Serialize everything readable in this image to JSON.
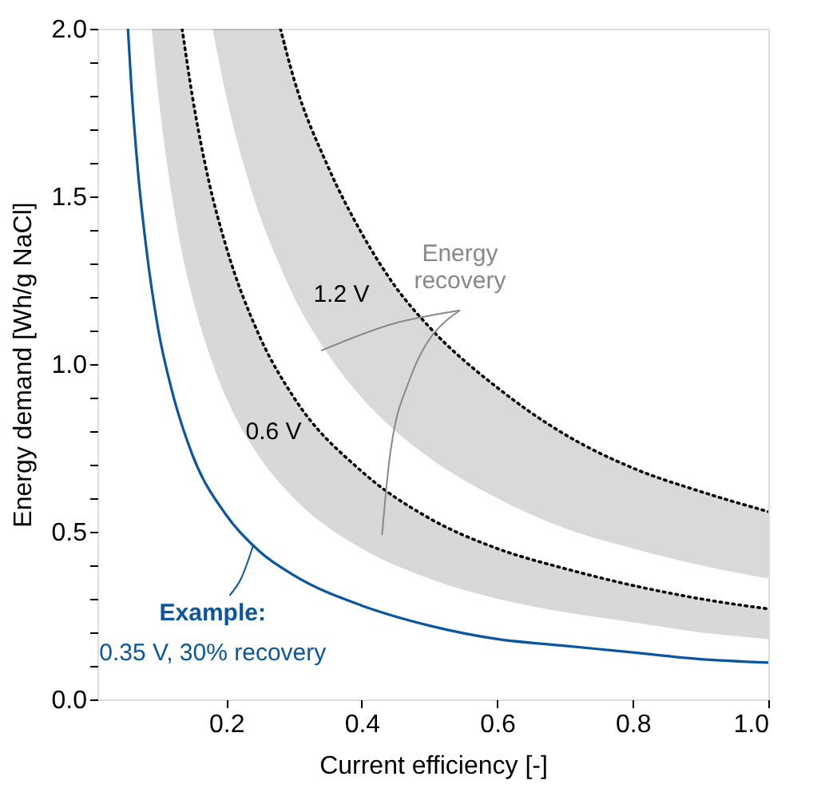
{
  "chart_data": {
    "type": "line",
    "xlabel": "Current efficiency [-]",
    "ylabel": "Energy demand [Wh/g NaCl]",
    "xlim": [
      0.01,
      1.0
    ],
    "ylim": [
      0.0,
      2.0
    ],
    "xticks": [
      0.2,
      0.4,
      0.6,
      0.8,
      {
        "value": 1.0,
        "label": "1.0"
      }
    ],
    "yticks": [
      {
        "value": 0.0,
        "label": "0.0"
      },
      {
        "value": 0.1,
        "label": null
      },
      {
        "value": 0.2,
        "label": null
      },
      {
        "value": 0.3,
        "label": null
      },
      {
        "value": 0.4,
        "label": null
      },
      0.5,
      {
        "value": 0.6,
        "label": null
      },
      {
        "value": 0.7,
        "label": null
      },
      {
        "value": 0.8,
        "label": null
      },
      {
        "value": 0.9,
        "label": null
      },
      {
        "value": 1.0,
        "label": "1.0"
      },
      {
        "value": 1.1,
        "label": null
      },
      {
        "value": 1.2,
        "label": null
      },
      {
        "value": 1.3,
        "label": null
      },
      {
        "value": 1.4,
        "label": null
      },
      1.5,
      {
        "value": 1.6,
        "label": null
      },
      {
        "value": 1.7,
        "label": null
      },
      {
        "value": 1.8,
        "label": null
      },
      {
        "value": 1.9,
        "label": null
      },
      {
        "value": 2.0,
        "label": "2.0"
      }
    ],
    "grid": false,
    "legend": false,
    "marker": "none",
    "series": [
      {
        "name": "1.2 V",
        "color": "#000000",
        "line_style": "dotted",
        "x": [
          0.18,
          0.2,
          0.24,
          0.28,
          0.3,
          0.35,
          0.4,
          0.45,
          0.5,
          0.6,
          0.7,
          0.8,
          0.9,
          1.0
        ],
        "values": [
          null,
          null,
          null,
          2.0,
          1.85,
          1.59,
          1.39,
          1.23,
          1.11,
          0.93,
          0.79,
          0.69,
          0.62,
          0.56
        ],
        "upper": [
          2.0,
          2.0,
          2.0,
          2.0,
          1.85,
          1.59,
          1.39,
          1.23,
          1.11,
          0.93,
          0.79,
          0.69,
          0.62,
          0.56
        ],
        "lower": [
          2.0,
          1.8,
          1.5,
          1.29,
          1.2,
          1.03,
          0.9,
          0.8,
          0.72,
          0.6,
          0.51,
          0.45,
          0.4,
          0.36
        ]
      },
      {
        "name": "0.6 V",
        "color": "#010101",
        "line_style": "dotted",
        "x": [
          0.09,
          0.1,
          0.12,
          0.135,
          0.15,
          0.175,
          0.2,
          0.25,
          0.3,
          0.4,
          0.5,
          0.6,
          0.7,
          0.8,
          0.9,
          1.0
        ],
        "values": [
          null,
          null,
          null,
          2.0,
          1.8,
          1.54,
          1.35,
          1.08,
          0.9,
          0.68,
          0.54,
          0.45,
          0.39,
          0.34,
          0.3,
          0.27
        ],
        "upper": [
          2.0,
          2.0,
          2.0,
          2.0,
          1.8,
          1.54,
          1.35,
          1.08,
          0.9,
          0.68,
          0.54,
          0.45,
          0.39,
          0.34,
          0.3,
          0.27
        ],
        "lower": [
          2.0,
          1.8,
          1.5,
          1.33,
          1.2,
          1.03,
          0.9,
          0.72,
          0.6,
          0.45,
          0.36,
          0.3,
          0.26,
          0.23,
          0.2,
          0.18
        ]
      },
      {
        "color": "#0a56a0",
        "line_style": "solid",
        "x": [
          0.055,
          0.06,
          0.07,
          0.08,
          0.1,
          0.12,
          0.15,
          0.2,
          0.25,
          0.3,
          0.4,
          0.5,
          0.6,
          0.7,
          0.8,
          0.9,
          1.0
        ],
        "values": [
          2.0,
          1.83,
          1.57,
          1.38,
          1.1,
          0.92,
          0.73,
          0.55,
          0.44,
          0.37,
          0.28,
          0.22,
          0.18,
          0.16,
          0.14,
          0.12,
          0.11
        ]
      }
    ],
    "annotations": [
      {
        "text": "Energy recovery",
        "x": 0.34,
        "y": 1.04
      },
      {
        "text": "Example:",
        "x": 0.24,
        "y": 0.46
      },
      "0.35 V, 30% recovery"
    ]
  }
}
